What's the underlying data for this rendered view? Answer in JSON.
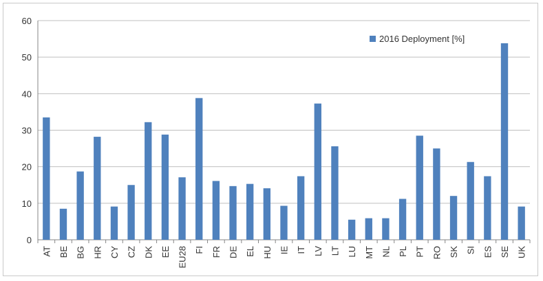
{
  "chart_data": {
    "type": "bar",
    "title": "",
    "xlabel": "",
    "ylabel": "",
    "ylim": [
      0,
      60
    ],
    "yticks": [
      0,
      10,
      20,
      30,
      40,
      50,
      60
    ],
    "grid": true,
    "legend_position": "top-right",
    "bar_color": "#4f81bd",
    "categories": [
      "AT",
      "BE",
      "BG",
      "HR",
      "CY",
      "CZ",
      "DK",
      "EE",
      "EU28",
      "FI",
      "FR",
      "DE",
      "EL",
      "HU",
      "IE",
      "IT",
      "LV",
      "LT",
      "LU",
      "MT",
      "NL",
      "PL",
      "PT",
      "RO",
      "SK",
      "SI",
      "ES",
      "SE",
      "UK"
    ],
    "series": [
      {
        "name": "2016 Deployment [%]",
        "values": [
          33.5,
          8.5,
          18.7,
          28.2,
          9.1,
          15.0,
          32.2,
          28.8,
          17.1,
          38.8,
          16.1,
          14.7,
          15.3,
          14.1,
          9.3,
          17.4,
          37.3,
          25.6,
          5.5,
          5.9,
          5.9,
          11.2,
          28.5,
          25.0,
          12.0,
          21.3,
          17.4,
          53.8,
          9.1
        ]
      }
    ]
  }
}
